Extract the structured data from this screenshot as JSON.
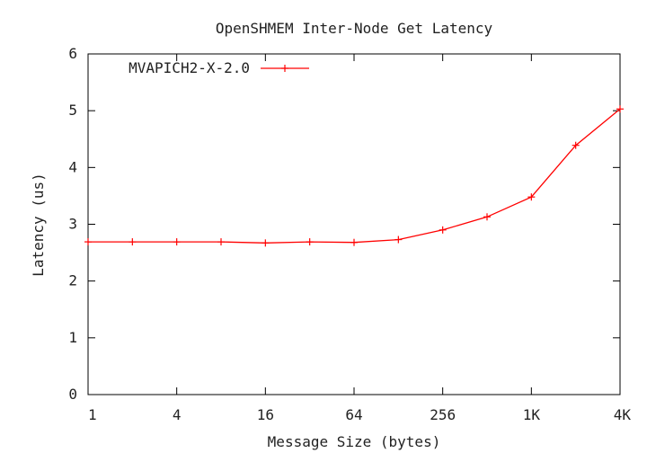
{
  "chart_data": {
    "type": "line",
    "title": "OpenSHMEM Inter-Node Get Latency",
    "xlabel": "Message Size (bytes)",
    "ylabel": "Latency (us)",
    "x_scale": "log2",
    "x_ticks": [
      {
        "value": 1,
        "label": "1"
      },
      {
        "value": 4,
        "label": "4"
      },
      {
        "value": 16,
        "label": "16"
      },
      {
        "value": 64,
        "label": "64"
      },
      {
        "value": 256,
        "label": "256"
      },
      {
        "value": 1024,
        "label": "1K"
      },
      {
        "value": 4096,
        "label": "4K"
      }
    ],
    "y_ticks": [
      0,
      1,
      2,
      3,
      4,
      5,
      6
    ],
    "xlim": [
      1,
      4096
    ],
    "ylim": [
      0,
      6
    ],
    "grid": false,
    "legend_position": "top-left",
    "series": [
      {
        "name": "MVAPICH2-X-2.0",
        "color": "#ff0000",
        "marker": "plus",
        "x": [
          1,
          2,
          4,
          8,
          16,
          32,
          64,
          128,
          256,
          512,
          1024,
          2048,
          4096
        ],
        "y": [
          2.69,
          2.69,
          2.69,
          2.69,
          2.67,
          2.69,
          2.68,
          2.73,
          2.9,
          3.13,
          3.48,
          4.39,
          5.03
        ]
      }
    ]
  }
}
